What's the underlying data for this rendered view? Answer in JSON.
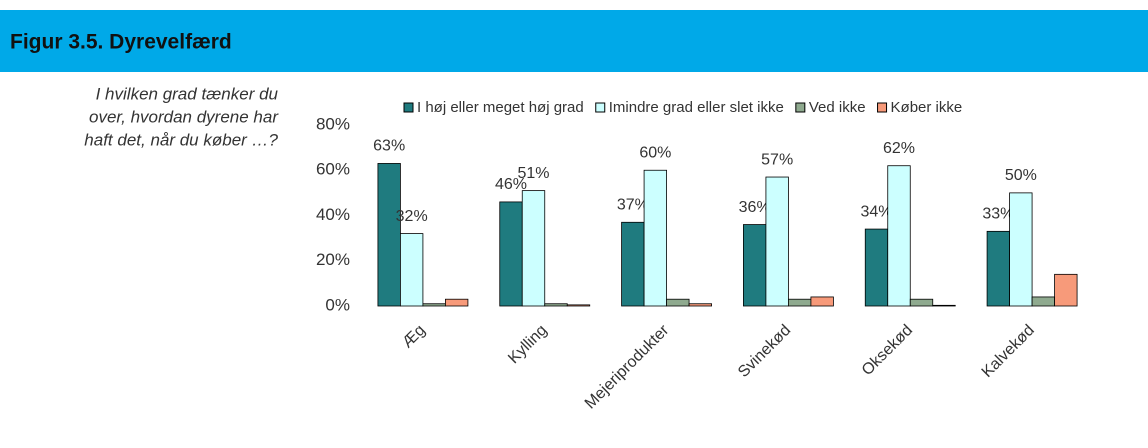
{
  "header": {
    "title": "Figur 3.5. Dyrevelfærd"
  },
  "question": [
    "I hvilken grad tænker du",
    "over, hvordan dyrene har",
    "haft det, når du køber …?"
  ],
  "chart_data": {
    "type": "bar",
    "categories": [
      "Æg",
      "Kylling",
      "Mejeriprodukter",
      "Svinekød",
      "Oksekød",
      "Kalvekød"
    ],
    "series": [
      {
        "name": "I høj eller meget høj grad",
        "color": "#1f7b7f",
        "values": [
          63,
          46,
          37,
          36,
          34,
          33
        ],
        "value_labels": [
          "63%",
          "46%",
          "37%",
          "36%",
          "34%",
          "33%"
        ]
      },
      {
        "name": "Imindre grad eller slet ikke",
        "color": "#ccffff",
        "values": [
          32,
          51,
          60,
          57,
          62,
          50
        ],
        "value_labels": [
          "32%",
          "51%",
          "60%",
          "57%",
          "62%",
          "50%"
        ]
      },
      {
        "name": "Ved ikke",
        "color": "#8faa8f",
        "values": [
          1,
          1,
          3,
          3,
          3,
          4
        ]
      },
      {
        "name": "Køber ikke",
        "color": "#f79a7a",
        "values": [
          3,
          0.5,
          1,
          4,
          0.3,
          14
        ]
      }
    ],
    "ylim": [
      0,
      80
    ],
    "yticks": [
      {
        "value": 0,
        "label": "0%"
      },
      {
        "value": 20,
        "label": "20%"
      },
      {
        "value": 40,
        "label": "40%"
      },
      {
        "value": 60,
        "label": "60%"
      },
      {
        "value": 80,
        "label": "80%"
      }
    ],
    "legend": "top"
  }
}
